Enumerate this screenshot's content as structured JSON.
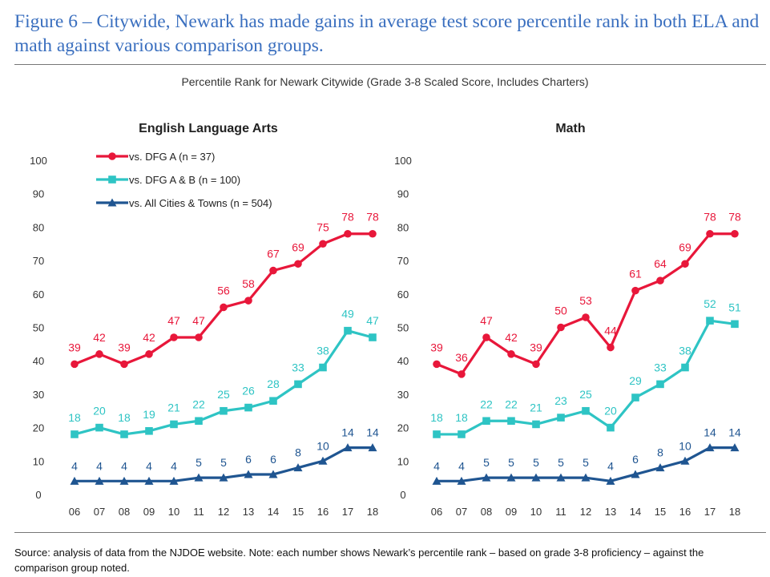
{
  "figure_title": "Figure 6 – Citywide, Newark has made gains in average test score percentile rank in both ELA and math against various comparison groups.",
  "subtitle": "Percentile Rank for Newark Citywide (Grade 3-8 Scaled Score, Includes Charters)",
  "source": "Source: analysis of data from the NJDOE website. Note: each number shows Newark’s percentile rank – based on grade 3-8 proficiency – against the comparison group noted.",
  "colors": {
    "red": "#e8173a",
    "teal": "#2ec4c4",
    "navy": "#1f5591"
  },
  "chart_data": [
    {
      "type": "line",
      "title": "English Language Arts",
      "categories": [
        "06",
        "07",
        "08",
        "09",
        "10",
        "11",
        "12",
        "13",
        "14",
        "15",
        "16",
        "17",
        "18"
      ],
      "ylim": [
        0,
        100
      ],
      "yticks": [
        0,
        10,
        20,
        30,
        40,
        50,
        60,
        70,
        80,
        90,
        100
      ],
      "legend_position": "top-left",
      "series": [
        {
          "name": "vs. DFG A (n = 37)",
          "color": "#e8173a",
          "marker": "circle",
          "values": [
            39,
            42,
            39,
            42,
            47,
            47,
            56,
            58,
            67,
            69,
            75,
            78,
            78
          ]
        },
        {
          "name": "vs. DFG A & B (n = 100)",
          "color": "#2ec4c4",
          "marker": "square",
          "values": [
            18,
            20,
            18,
            19,
            21,
            22,
            25,
            26,
            28,
            33,
            38,
            49,
            47
          ]
        },
        {
          "name": "vs. All Cities & Towns (n = 504)",
          "color": "#1f5591",
          "marker": "triangle",
          "values": [
            4,
            4,
            4,
            4,
            4,
            5,
            5,
            6,
            6,
            8,
            10,
            14,
            14
          ]
        }
      ]
    },
    {
      "type": "line",
      "title": "Math",
      "categories": [
        "06",
        "07",
        "08",
        "09",
        "10",
        "11",
        "12",
        "13",
        "14",
        "15",
        "16",
        "17",
        "18"
      ],
      "ylim": [
        0,
        100
      ],
      "yticks": [
        0,
        10,
        20,
        30,
        40,
        50,
        60,
        70,
        80,
        90,
        100
      ],
      "series": [
        {
          "name": "vs. DFG A (n = 37)",
          "color": "#e8173a",
          "marker": "circle",
          "values": [
            39,
            36,
            47,
            42,
            39,
            50,
            53,
            44,
            61,
            64,
            69,
            78,
            78
          ]
        },
        {
          "name": "vs. DFG A & B (n = 100)",
          "color": "#2ec4c4",
          "marker": "square",
          "values": [
            18,
            18,
            22,
            22,
            21,
            23,
            25,
            20,
            29,
            33,
            38,
            52,
            51
          ]
        },
        {
          "name": "vs. All Cities & Towns (n = 504)",
          "color": "#1f5591",
          "marker": "triangle",
          "values": [
            4,
            4,
            5,
            5,
            5,
            5,
            5,
            4,
            6,
            8,
            10,
            14,
            14
          ]
        }
      ]
    }
  ]
}
